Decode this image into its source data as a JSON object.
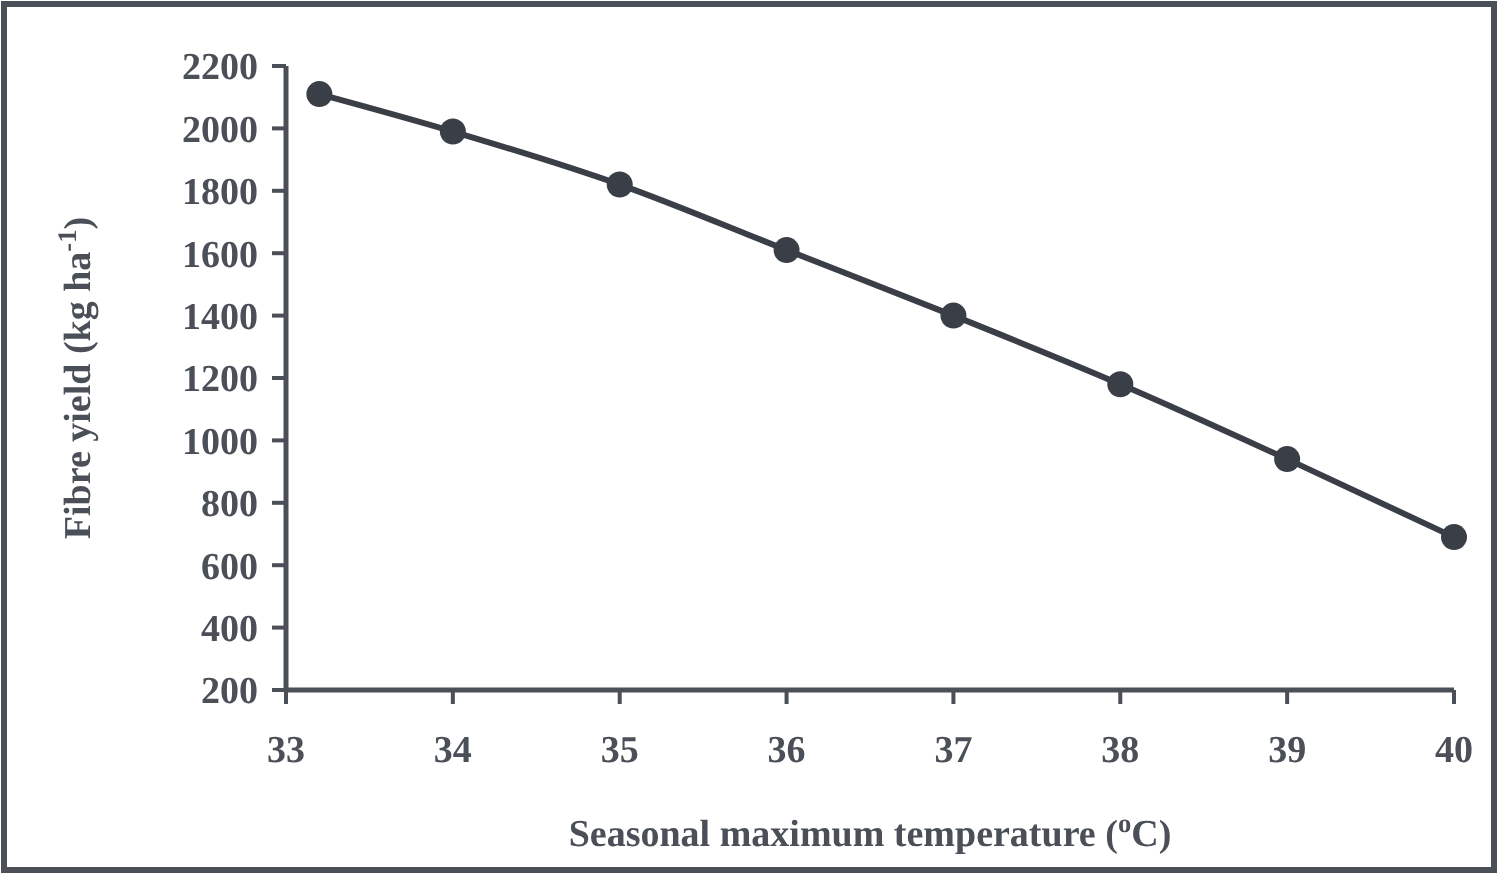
{
  "chart_data": {
    "type": "line",
    "xlabel": "Seasonal maximum temperature ($^{o}$C)",
    "ylabel": "Fibre yield (kg ha$^{-1}$)",
    "x": [
      33.2,
      34,
      35,
      36,
      37,
      38,
      39,
      40
    ],
    "series": [
      {
        "color": "#3a3f47",
        "values": [
          2110,
          1990,
          1820,
          1610,
          1400,
          1180,
          940,
          690
        ]
      }
    ],
    "xlim": [
      33,
      40
    ],
    "xticks": [
      33,
      34,
      35,
      36,
      37,
      38,
      39,
      40
    ],
    "ylim": [
      200,
      2200
    ],
    "yticks": [
      200,
      400,
      600,
      800,
      1000,
      1200,
      1400,
      1600,
      1800,
      2000,
      2200
    ],
    "marker": "circle",
    "line_style": "solid",
    "grid": false
  }
}
